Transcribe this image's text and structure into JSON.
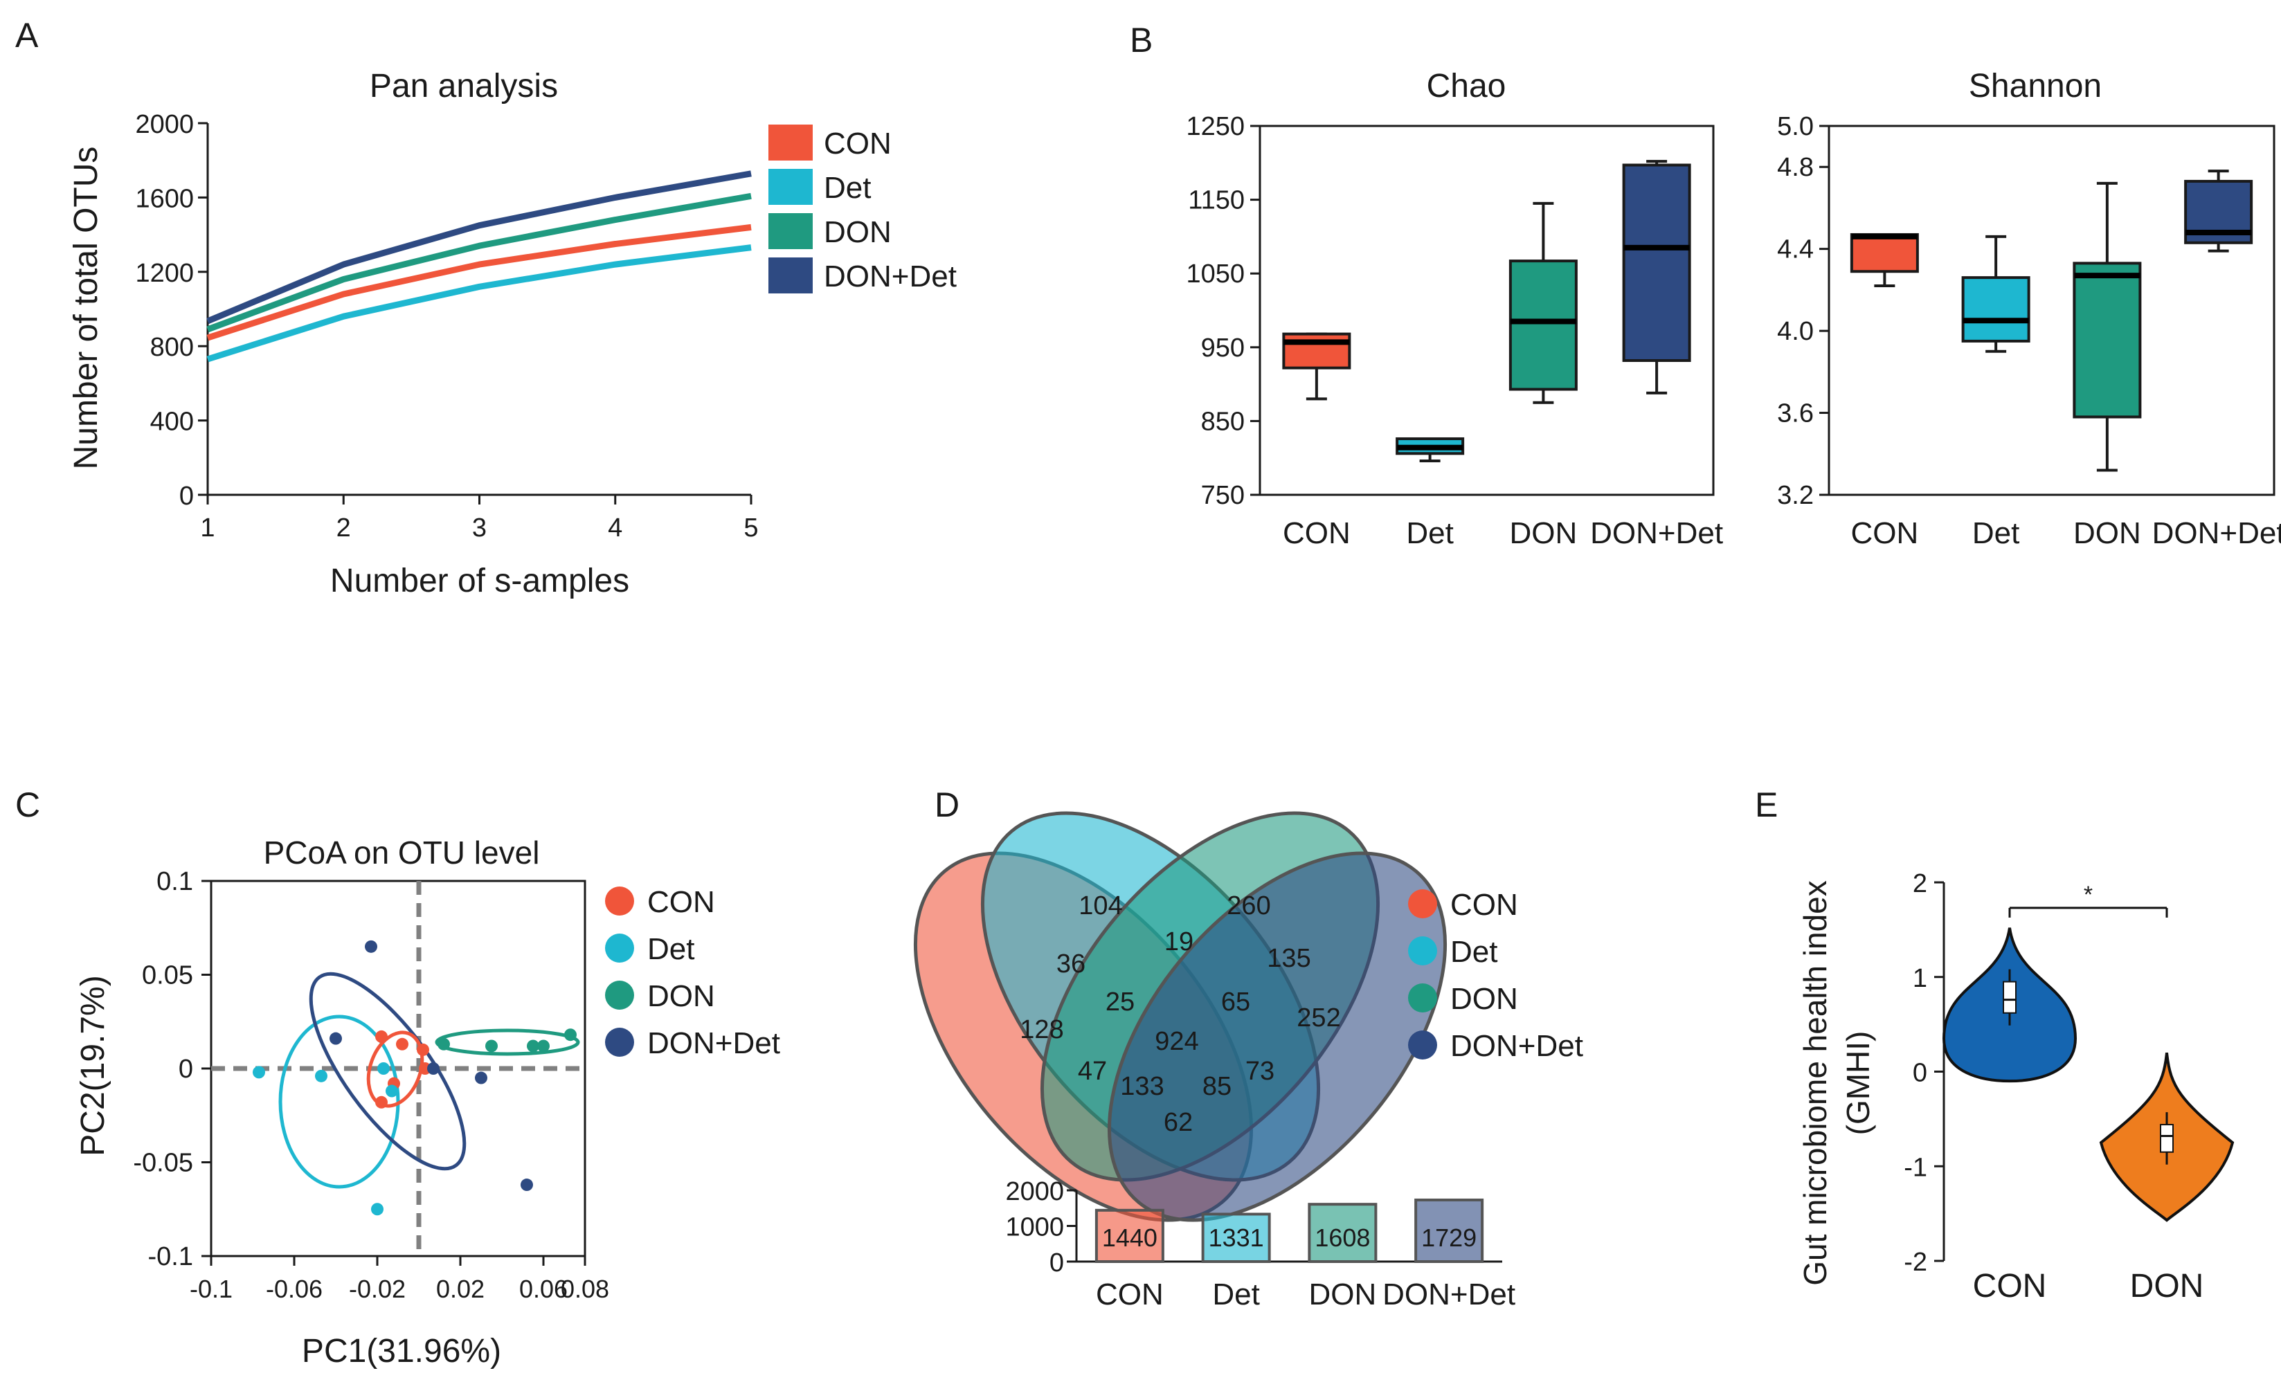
{
  "colors": {
    "CON": "#f0553a",
    "Det": "#1eb7d0",
    "DON": "#1f9a80",
    "DON+Det": "#2e4a82",
    "violin_CON": "#1565b0",
    "violin_DON": "#ee7d1e",
    "axis": "#1a1a1a",
    "dash": "#808080"
  },
  "panels": {
    "A": "A",
    "B": "B",
    "C": "C",
    "D": "D",
    "E": "E"
  },
  "chart_data": [
    {
      "id": "A",
      "type": "line",
      "title": "Pan analysis",
      "xlabel": "Number of s-amples",
      "ylabel": "Number of total OTUs",
      "xlim": [
        1,
        5
      ],
      "ylim": [
        0,
        2000
      ],
      "xticks": [
        1,
        2,
        3,
        4,
        5
      ],
      "yticks": [
        0,
        400,
        800,
        1200,
        1600,
        2000
      ],
      "x": [
        1,
        2,
        3,
        4,
        5
      ],
      "series": [
        {
          "name": "CON",
          "values": [
            845,
            1080,
            1240,
            1350,
            1440
          ]
        },
        {
          "name": "Det",
          "values": [
            730,
            960,
            1120,
            1240,
            1331
          ]
        },
        {
          "name": "DON",
          "values": [
            890,
            1160,
            1340,
            1480,
            1608
          ]
        },
        {
          "name": "DON+Det",
          "values": [
            935,
            1240,
            1450,
            1600,
            1729
          ]
        }
      ],
      "legend": [
        "CON",
        "Det",
        "DON",
        "DON+Det"
      ]
    },
    {
      "id": "B1",
      "type": "box",
      "title": "Chao",
      "categories": [
        "CON",
        "Det",
        "DON",
        "DON+Det"
      ],
      "ylim": [
        750,
        1250
      ],
      "yticks": [
        750,
        850,
        950,
        1050,
        1150,
        1250
      ],
      "boxes": [
        {
          "min": 880,
          "q1": 922,
          "median": 957,
          "q3": 968,
          "max": 968
        },
        {
          "min": 796,
          "q1": 806,
          "median": 814,
          "q3": 826,
          "max": 826
        },
        {
          "min": 875,
          "q1": 893,
          "median": 985,
          "q3": 1067,
          "max": 1145
        },
        {
          "min": 888,
          "q1": 932,
          "median": 1085,
          "q3": 1197,
          "max": 1202
        }
      ]
    },
    {
      "id": "B2",
      "type": "box",
      "title": "Shannon",
      "categories": [
        "CON",
        "Det",
        "DON",
        "DON+Det"
      ],
      "ylim": [
        3.2,
        5.0
      ],
      "yticks": [
        "3.2",
        "3.6",
        "4.0",
        "4.4",
        "4.8",
        "5.0"
      ],
      "boxes": [
        {
          "min": 4.22,
          "q1": 4.29,
          "median": 4.46,
          "q3": 4.47,
          "max": 4.47
        },
        {
          "min": 3.9,
          "q1": 3.95,
          "median": 4.05,
          "q3": 4.26,
          "max": 4.46
        },
        {
          "min": 3.32,
          "q1": 3.58,
          "median": 4.27,
          "q3": 4.33,
          "max": 4.72
        },
        {
          "min": 4.39,
          "q1": 4.43,
          "median": 4.48,
          "q3": 4.73,
          "max": 4.78
        }
      ]
    },
    {
      "id": "C",
      "type": "scatter",
      "title": "PCoA on OTU level",
      "xlabel": "PC1(31.96%)",
      "ylabel": "PC2(19.7%)",
      "xlim": [
        -0.1,
        0.08
      ],
      "ylim": [
        -0.1,
        0.1
      ],
      "xticks": [
        "-0.1",
        "-0.06",
        "-0.02",
        "0.02",
        "0.06",
        "0.08"
      ],
      "yticks": [
        "-0.1",
        "-0.05",
        "0",
        "0.05",
        "0.1"
      ],
      "series": [
        {
          "name": "CON",
          "points": [
            [
              -0.018,
              0.017
            ],
            [
              -0.012,
              -0.008
            ],
            [
              -0.018,
              -0.018
            ],
            [
              -0.008,
              0.013
            ],
            [
              0.002,
              0.01
            ],
            [
              0.003,
              0.0
            ]
          ]
        },
        {
          "name": "Det",
          "points": [
            [
              -0.077,
              -0.002
            ],
            [
              -0.047,
              -0.004
            ],
            [
              -0.02,
              -0.075
            ],
            [
              -0.017,
              0.0
            ],
            [
              -0.013,
              -0.012
            ]
          ]
        },
        {
          "name": "DON",
          "points": [
            [
              0.012,
              0.013
            ],
            [
              0.035,
              0.012
            ],
            [
              0.055,
              0.012
            ],
            [
              0.06,
              0.012
            ],
            [
              0.073,
              0.018
            ]
          ]
        },
        {
          "name": "DON+Det",
          "points": [
            [
              -0.023,
              0.065
            ],
            [
              -0.04,
              0.016
            ],
            [
              0.007,
              0.0
            ],
            [
              0.03,
              -0.005
            ],
            [
              0.052,
              -0.062
            ]
          ]
        }
      ],
      "legend": [
        "CON",
        "Det",
        "DON",
        "DON+Det"
      ]
    },
    {
      "id": "D",
      "type": "venn",
      "sets": [
        "CON",
        "Det",
        "DON",
        "DON+Det"
      ],
      "regions": [
        {
          "sets": [
            "Det"
          ],
          "value": 104
        },
        {
          "sets": [
            "DON"
          ],
          "value": 260
        },
        {
          "sets": [
            "CON",
            "Det"
          ],
          "value": 36
        },
        {
          "sets": [
            "Det",
            "DON"
          ],
          "value": 19
        },
        {
          "sets": [
            "DON",
            "DON+Det"
          ],
          "value": 135
        },
        {
          "sets": [
            "CON"
          ],
          "value": 128
        },
        {
          "sets": [
            "CON",
            "Det",
            "DON"
          ],
          "value": 25
        },
        {
          "sets": [
            "Det",
            "DON",
            "DON+Det"
          ],
          "value": 65
        },
        {
          "sets": [
            "DON+Det"
          ],
          "value": 252
        },
        {
          "sets": [
            "CON",
            "Det",
            "DON",
            "DON+Det"
          ],
          "value": 924
        },
        {
          "sets": [
            "CON",
            "DON"
          ],
          "value": 47
        },
        {
          "sets": [
            "CON",
            "DON",
            "DON+Det"
          ],
          "value": 133
        },
        {
          "sets": [
            "CON",
            "Det",
            "DON+Det"
          ],
          "value": 85
        },
        {
          "sets": [
            "Det",
            "DON+Det"
          ],
          "value": 73
        },
        {
          "sets": [
            "CON",
            "DON+Det"
          ],
          "value": 62
        }
      ],
      "totals": {
        "type": "bar",
        "categories": [
          "CON",
          "Det",
          "DON",
          "DON+Det"
        ],
        "values": [
          1440,
          1331,
          1608,
          1729
        ],
        "ylim": [
          0,
          2000
        ],
        "yticks": [
          0,
          1000,
          2000
        ]
      },
      "legend": [
        "CON",
        "Det",
        "DON",
        "DON+Det"
      ]
    },
    {
      "id": "E",
      "type": "violin",
      "ylabel_line1": "Gut microbiome health index",
      "ylabel_line2": "(GMHI)",
      "categories": [
        "CON",
        "DON"
      ],
      "ylim": [
        -2,
        2
      ],
      "yticks": [
        "-2",
        "-1",
        "0",
        "1",
        "2"
      ],
      "violins": [
        {
          "name": "CON",
          "min": -0.1,
          "max": 1.52,
          "q1": 0.62,
          "median": 0.76,
          "q3": 0.95
        },
        {
          "name": "DON",
          "min": -1.57,
          "max": 0.2,
          "q1": -0.85,
          "median": -0.68,
          "q3": -0.56
        }
      ],
      "significance": "*"
    }
  ]
}
